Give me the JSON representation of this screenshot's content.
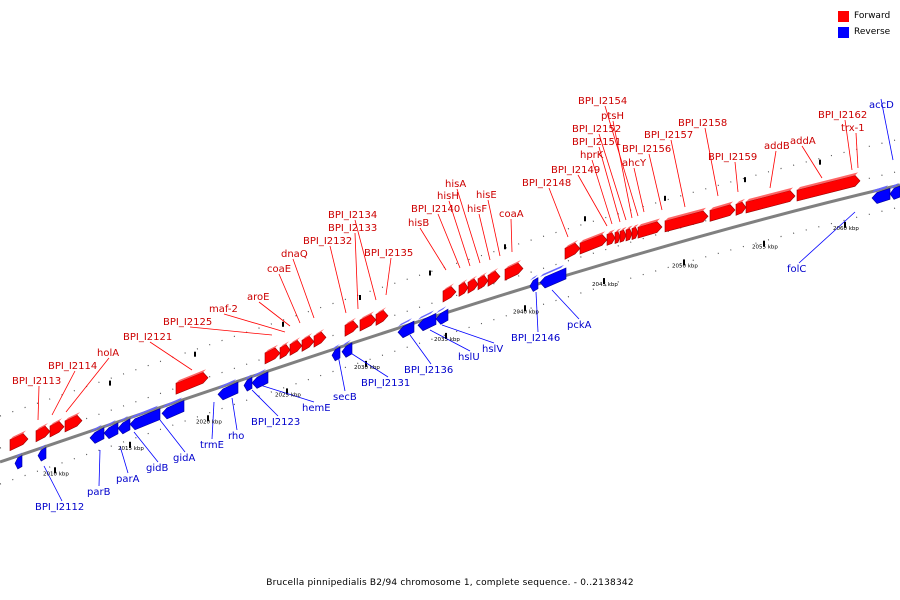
{
  "colors": {
    "forward": "#ff0000",
    "reverse": "#0000ff",
    "backbone": "#808080",
    "forward_label": "#cc0000",
    "reverse_label": "#0000cc"
  },
  "legend": [
    {
      "label": "Forward",
      "color": "#ff0000"
    },
    {
      "label": "Reverse",
      "color": "#0000ff"
    }
  ],
  "caption": "Brucella pinnipedialis B2/94 chromosome 1, complete sequence. - 0..2138342",
  "scale_labels": [
    "2010 kbp",
    "2015 kbp",
    "2020 kbp",
    "2025 kbp",
    "2030 kbp",
    "2035 kbp",
    "2040 kbp",
    "2045 kbp",
    "2050 kbp",
    "2055 kbp",
    "2060 kbp"
  ],
  "forward_genes": [
    "BPI_I2113",
    "BPI_I2114",
    "holA",
    "BPI_I2121",
    "BPI_I2125",
    "maf-2",
    "aroE",
    "coaE",
    "dnaQ",
    "BPI_I2132",
    "BPI_I2133",
    "BPI_I2134",
    "BPI_I2135",
    "hisB",
    "BPI_I2140",
    "hisH",
    "hisA",
    "hisF",
    "hisE",
    "coaA",
    "BPI_I2148",
    "BPI_I2149",
    "hprK",
    "BPI_I2151",
    "BPI_I2152",
    "ptsH",
    "BPI_I2154",
    "ahcY",
    "BPI_I2156",
    "BPI_I2157",
    "BPI_I2158",
    "BPI_I2159",
    "addB",
    "addA",
    "BPI_I2162",
    "trx-1"
  ],
  "reverse_genes": [
    "BPI_I2112",
    "parB",
    "parA",
    "gidB",
    "gidA",
    "trmE",
    "rho",
    "BPI_I2123",
    "hemE",
    "secB",
    "BPI_I2131",
    "BPI_I2136",
    "hslU",
    "hslV",
    "BPI_I2146",
    "pckA",
    "folC",
    "accD"
  ]
}
